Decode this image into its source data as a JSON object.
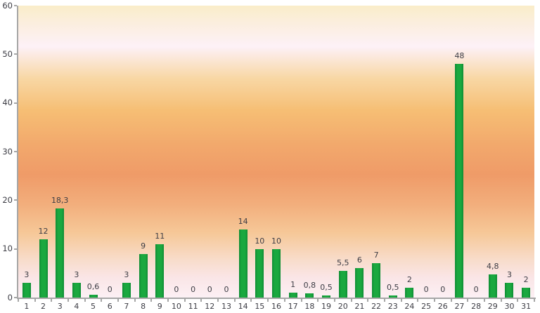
{
  "chart_data": {
    "type": "bar",
    "title": "",
    "xlabel": "",
    "ylabel": "",
    "categories": [
      "1",
      "2",
      "3",
      "4",
      "5",
      "6",
      "7",
      "8",
      "9",
      "10",
      "11",
      "12",
      "13",
      "14",
      "15",
      "16",
      "17",
      "18",
      "19",
      "20",
      "21",
      "22",
      "23",
      "24",
      "25",
      "26",
      "27",
      "28",
      "29",
      "30",
      "31"
    ],
    "values": [
      3,
      12,
      18.3,
      3,
      0.6,
      0,
      3,
      9,
      11,
      0,
      0,
      0,
      0,
      14,
      10,
      10,
      1,
      0.8,
      0.5,
      5.5,
      6,
      7,
      0.5,
      2,
      0,
      0,
      48,
      0,
      4.8,
      3,
      2
    ],
    "value_labels": [
      "3",
      "12",
      "18,3",
      "3",
      "0,6",
      "0",
      "3",
      "9",
      "11",
      "0",
      "0",
      "0",
      "0",
      "14",
      "10",
      "10",
      "1",
      "0,8",
      "0,5",
      "5,5",
      "6",
      "7",
      "0,5",
      "2",
      "0",
      "0",
      "48",
      "0",
      "4,8",
      "3",
      "2"
    ],
    "ylim": [
      0,
      60
    ],
    "yticks": [
      0,
      10,
      20,
      30,
      40,
      50,
      60
    ],
    "grid": false,
    "legend": false,
    "decimal_separator": ",",
    "colors": {
      "bar": "#1aa83f",
      "bar_edge": "#0f8c34",
      "axis": "#a6a6a6",
      "label_text": "#3c3c44",
      "plot_gradient": [
        "#faedc9",
        "#fdf1f7",
        "#f6be74",
        "#ef9b68",
        "#f6c898",
        "#fae5e6",
        "#fcf0f4"
      ],
      "page_background": "#ffffff"
    }
  }
}
